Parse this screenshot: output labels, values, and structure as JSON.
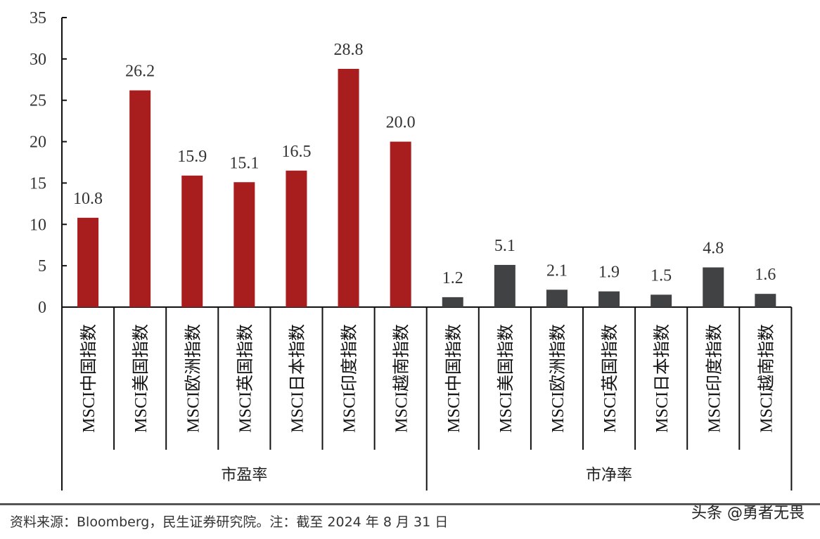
{
  "chart_data": {
    "type": "bar",
    "title": "",
    "xlabel": "",
    "ylabel": "",
    "ylim": [
      0,
      35
    ],
    "yticks": [
      0,
      5,
      10,
      15,
      20,
      25,
      30,
      35
    ],
    "grid": false,
    "legend": null,
    "groups": [
      {
        "name": "市盈率",
        "color": "#a81e1e",
        "categories": [
          "MSCI中国指数",
          "MSCI美国指数",
          "MSCI欧洲指数",
          "MSCI英国指数",
          "MSCI日本指数",
          "MSCI印度指数",
          "MSCI越南指数"
        ],
        "values": [
          10.8,
          26.2,
          15.9,
          15.1,
          16.5,
          28.8,
          20.0
        ],
        "labels": [
          "10.8",
          "26.2",
          "15.9",
          "15.1",
          "16.5",
          "28.8",
          "20.0"
        ]
      },
      {
        "name": "市净率",
        "color": "#404244",
        "categories": [
          "MSCI中国指数",
          "MSCI美国指数",
          "MSCI欧洲指数",
          "MSCI英国指数",
          "MSCI日本指数",
          "MSCI印度指数",
          "MSCI越南指数"
        ],
        "values": [
          1.2,
          5.1,
          2.1,
          1.9,
          1.5,
          4.8,
          1.6
        ],
        "labels": [
          "1.2",
          "5.1",
          "2.1",
          "1.9",
          "1.5",
          "4.8",
          "1.6"
        ]
      }
    ]
  },
  "footer": {
    "source": "资料来源：Bloomberg，民生证券研究院。注：截至 2024 年 8 月 31 日",
    "watermark": "头条 @勇者无畏"
  }
}
